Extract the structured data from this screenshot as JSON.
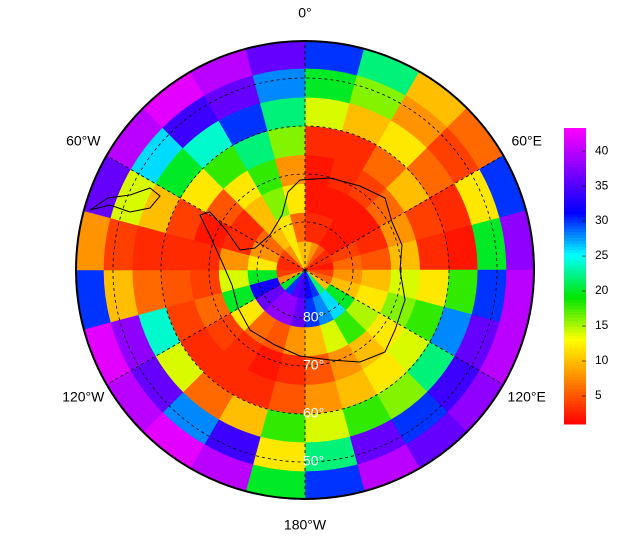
{
  "chart_data": {
    "type": "polar_heatmap",
    "rlim": [
      90,
      42.3
    ],
    "lon_bins": [
      0,
      15,
      30,
      45,
      60,
      75,
      90,
      105,
      120,
      135,
      150,
      165,
      180,
      195,
      210,
      225,
      240,
      255,
      270,
      285,
      300,
      315,
      330,
      345,
      360
    ],
    "lat_bins": [
      90,
      84,
      78,
      72,
      66,
      60,
      54,
      48,
      42.3
    ],
    "values": [
      [
        10,
        8,
        5,
        3,
        3,
        2,
        4,
        6,
        10,
        22,
        30,
        32,
        34,
        35,
        30,
        20,
        8,
        4,
        3,
        3,
        4,
        8,
        12,
        10
      ],
      [
        3,
        3,
        2,
        2,
        4,
        6,
        8,
        10,
        20,
        26,
        28,
        30,
        36,
        38,
        38,
        36,
        32,
        20,
        12,
        8,
        6,
        10,
        12,
        6
      ],
      [
        2,
        2,
        2,
        2,
        3,
        5,
        10,
        12,
        15,
        18,
        14,
        10,
        8,
        5,
        6,
        12,
        20,
        14,
        8,
        3,
        3,
        10,
        16,
        12
      ],
      [
        2,
        3,
        4,
        6,
        8,
        10,
        14,
        16,
        12,
        10,
        8,
        5,
        3,
        2,
        3,
        4,
        6,
        4,
        3,
        2,
        5,
        12,
        18,
        8
      ],
      [
        3,
        3,
        6,
        10,
        4,
        3,
        12,
        18,
        14,
        12,
        10,
        8,
        5,
        3,
        3,
        3,
        4,
        5,
        3,
        4,
        12,
        18,
        22,
        16
      ],
      [
        14,
        10,
        12,
        6,
        3,
        2,
        18,
        28,
        22,
        16,
        18,
        14,
        18,
        10,
        6,
        14,
        24,
        6,
        3,
        10,
        20,
        24,
        30,
        22
      ],
      [
        20,
        16,
        8,
        4,
        12,
        20,
        30,
        36,
        34,
        30,
        36,
        22,
        12,
        34,
        28,
        36,
        38,
        10,
        4,
        14,
        26,
        34,
        36,
        28
      ],
      [
        30,
        22,
        10,
        6,
        30,
        38,
        40,
        40,
        38,
        36,
        40,
        30,
        20,
        40,
        42,
        40,
        42,
        30,
        8,
        36,
        40,
        42,
        40,
        36
      ]
    ],
    "clim": [
      1,
      43.3
    ],
    "colors": [
      "#ff0000",
      "#ff7f00",
      "#ffff00",
      "#00e600",
      "#00ffff",
      "#0000ff",
      "#8000ff",
      "#ff00ff"
    ],
    "cticks": [
      5,
      10,
      15,
      20,
      25,
      30,
      35,
      40
    ],
    "lon_ticks": [
      {
        "value": 0,
        "label": "0°"
      },
      {
        "value": 60,
        "label": "60°E"
      },
      {
        "value": 120,
        "label": "120°E"
      },
      {
        "value": 180,
        "label": "180°W"
      },
      {
        "value": 240,
        "label": "120°W"
      },
      {
        "value": 300,
        "label": "60°W"
      }
    ],
    "lat_ticks": [
      {
        "value": 80,
        "label": "80°"
      },
      {
        "value": 70,
        "label": "70°"
      },
      {
        "value": 60,
        "label": "60°"
      },
      {
        "value": 50,
        "label": "50°"
      }
    ]
  }
}
